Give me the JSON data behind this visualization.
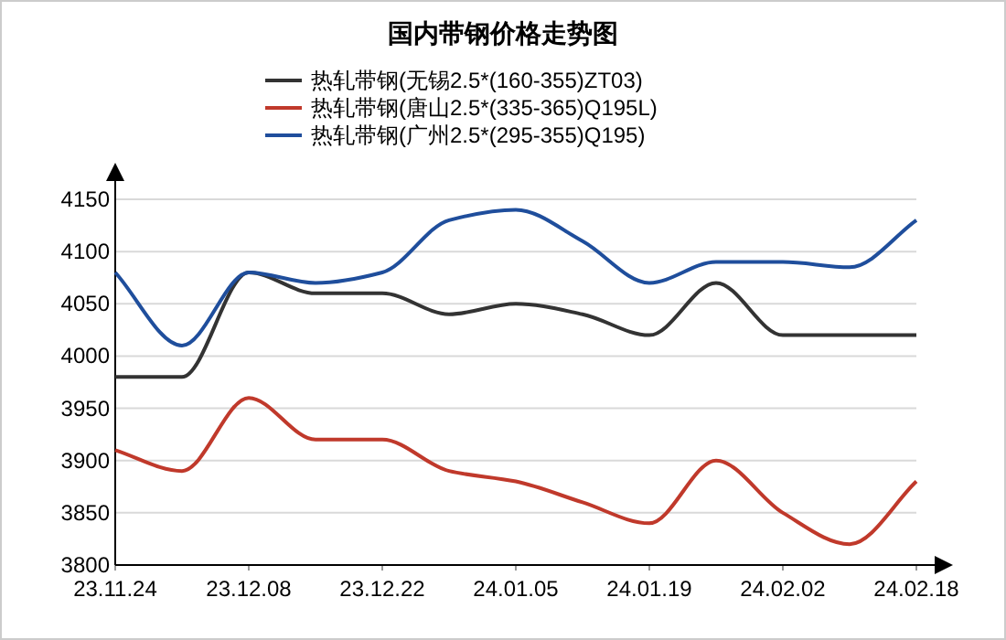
{
  "chart_data": {
    "type": "line",
    "title": "国内带钢价格走势图",
    "categories": [
      "23.11.24",
      null,
      "23.12.08",
      null,
      "23.12.22",
      null,
      "24.01.05",
      null,
      "24.01.19",
      null,
      "24.02.02",
      null,
      "24.02.18"
    ],
    "series": [
      {
        "name": "热轧带钢(无锡2.5*(160-355)ZT03)",
        "color": "#333333",
        "values": [
          3980,
          3980,
          4080,
          4060,
          4060,
          4040,
          4050,
          4040,
          4020,
          4070,
          4020,
          4020,
          4020
        ]
      },
      {
        "name": "热轧带钢(唐山2.5*(335-365)Q195L)",
        "color": "#c0392b",
        "values": [
          3910,
          3890,
          3960,
          3920,
          3920,
          3890,
          3880,
          3860,
          3840,
          3900,
          3850,
          3820,
          3880
        ]
      },
      {
        "name": "热轧带钢(广州2.5*(295-355)Q195)",
        "color": "#1f4e9c",
        "values": [
          4080,
          4010,
          4080,
          4070,
          4080,
          4130,
          4140,
          4110,
          4070,
          4090,
          4090,
          4085,
          4130
        ]
      }
    ],
    "ylim": [
      3800,
      4150
    ],
    "yticks": [
      3800,
      3850,
      3900,
      3950,
      4000,
      4050,
      4100,
      4150
    ],
    "grid": "y",
    "legend": "top",
    "marker": "none",
    "line_style": "solid"
  }
}
